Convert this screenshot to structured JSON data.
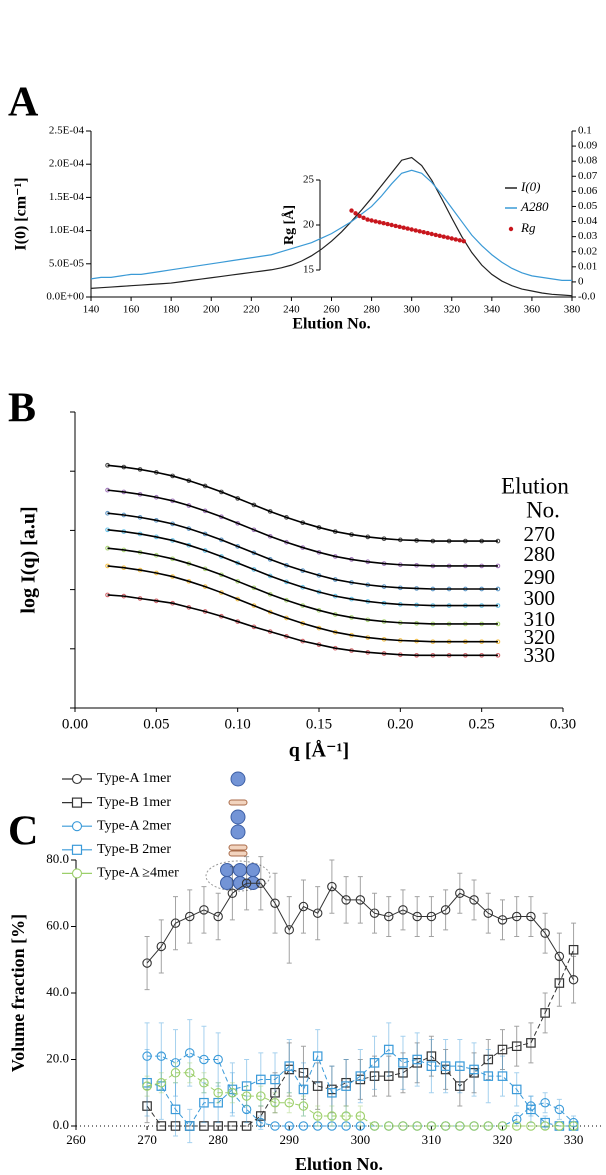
{
  "chart_data": [
    {
      "type": "line",
      "panel": "A",
      "xlabel": "Elution No.",
      "ylabel": "I(0) [cm⁻¹]",
      "xlim": [
        140,
        380
      ],
      "xticks": [
        140,
        160,
        180,
        200,
        220,
        240,
        260,
        280,
        300,
        320,
        340,
        360,
        380
      ],
      "ylim": [
        0,
        0.00025
      ],
      "yticks": [
        {
          "value": 0,
          "label": "0.0E+00"
        },
        {
          "value": 5e-05,
          "label": "5.0E-05"
        },
        {
          "value": 0.0001,
          "label": "1.0E-04"
        },
        {
          "value": 0.00015,
          "label": "1.5E-04"
        },
        {
          "value": 0.0002,
          "label": "2.0E-04"
        },
        {
          "value": 0.00025,
          "label": "2.5E-04"
        }
      ],
      "y2lim": [
        -0.01,
        0.1
      ],
      "y2ticks": [
        {
          "value": -0.01,
          "label": "-0.0"
        },
        0,
        0.01,
        0.02,
        0.03,
        0.04,
        0.05,
        0.06,
        0.07,
        0.08,
        0.09,
        0.1
      ],
      "inset_axis": {
        "label": "Rg [Å]",
        "ylim": [
          15,
          25
        ],
        "yticks": [
          15,
          20,
          25
        ]
      },
      "legend": "center-right",
      "x": [
        140,
        145,
        150,
        155,
        160,
        165,
        170,
        175,
        180,
        185,
        190,
        195,
        200,
        205,
        210,
        215,
        220,
        225,
        230,
        235,
        240,
        245,
        250,
        255,
        260,
        265,
        270,
        275,
        280,
        285,
        290,
        295,
        300,
        305,
        310,
        315,
        320,
        325,
        330,
        335,
        340,
        345,
        350,
        355,
        360,
        365,
        370,
        375,
        380
      ],
      "series": [
        {
          "name": "I(0)",
          "color": "#222222",
          "values": [
            1.3e-05,
            1.4e-05,
            1.5e-05,
            1.6e-05,
            1.7e-05,
            1.8e-05,
            1.9e-05,
            2e-05,
            2.1e-05,
            2.3e-05,
            2.5e-05,
            2.7e-05,
            2.9e-05,
            3.1e-05,
            3.3e-05,
            3.5e-05,
            3.7e-05,
            3.9e-05,
            4.1e-05,
            4.4e-05,
            4.8e-05,
            5.4e-05,
            6.2e-05,
            7.2e-05,
            8.4e-05,
            9.8e-05,
            0.000114,
            0.000131,
            0.000149,
            0.000168,
            0.000187,
            0.000206,
            0.00021,
            0.000198,
            0.000176,
            0.000148,
            0.000119,
            9.1e-05,
            6.7e-05,
            4.8e-05,
            3.4e-05,
            2.4e-05,
            1.7e-05,
            1.2e-05,
            9e-06,
            6e-06,
            4e-06,
            3e-06,
            2e-06
          ]
        },
        {
          "name": "A280",
          "color": "#3b9ad6",
          "axis": "y2",
          "values": [
            0.002,
            0.003,
            0.003,
            0.004,
            0.005,
            0.005,
            0.006,
            0.007,
            0.008,
            0.009,
            0.01,
            0.011,
            0.012,
            0.013,
            0.014,
            0.015,
            0.016,
            0.017,
            0.018,
            0.02,
            0.022,
            0.024,
            0.026,
            0.029,
            0.032,
            0.036,
            0.04,
            0.045,
            0.05,
            0.057,
            0.065,
            0.072,
            0.074,
            0.072,
            0.066,
            0.058,
            0.049,
            0.04,
            0.031,
            0.024,
            0.018,
            0.013,
            0.009,
            0.006,
            0.004,
            0.003,
            0.002,
            0.001,
            0.001
          ]
        },
        {
          "name": "Rg",
          "color": "#c8161d",
          "axis": "inset",
          "marker": "dot",
          "line": false,
          "x": [
            270,
            272,
            274,
            276,
            278,
            280,
            282,
            284,
            286,
            288,
            290,
            292,
            294,
            296,
            298,
            300,
            302,
            304,
            306,
            308,
            310,
            312,
            314,
            316,
            318,
            320,
            322,
            324,
            326
          ],
          "values": [
            21.6,
            21.3,
            21.0,
            20.8,
            20.6,
            20.5,
            20.4,
            20.3,
            20.2,
            20.1,
            20.0,
            19.9,
            19.8,
            19.7,
            19.6,
            19.5,
            19.4,
            19.3,
            19.2,
            19.1,
            19.0,
            18.9,
            18.8,
            18.7,
            18.6,
            18.5,
            18.4,
            18.3,
            18.2
          ]
        }
      ]
    },
    {
      "type": "line",
      "panel": "B",
      "xlabel": "q [Å⁻¹]",
      "ylabel": "log I(q) [a.u]",
      "xlim": [
        0,
        0.3
      ],
      "xticks": [
        {
          "value": 0,
          "label": "0.00"
        },
        {
          "value": 0.05,
          "label": "0.05"
        },
        {
          "value": 0.1,
          "label": "0.10"
        },
        {
          "value": 0.15,
          "label": "0.15"
        },
        {
          "value": 0.2,
          "label": "0.20"
        },
        {
          "value": 0.25,
          "label": "0.25"
        },
        {
          "value": 0.3,
          "label": "0.30"
        }
      ],
      "ylim": [
        0,
        5
      ],
      "yticks": [
        0,
        1,
        2,
        3,
        4,
        5
      ],
      "ytick_labels": false,
      "legend": "right",
      "legend_title": [
        "Elution",
        "No."
      ],
      "x": [
        0.02,
        0.03,
        0.04,
        0.05,
        0.06,
        0.07,
        0.08,
        0.09,
        0.1,
        0.11,
        0.12,
        0.13,
        0.14,
        0.15,
        0.16,
        0.17,
        0.18,
        0.19,
        0.2,
        0.21,
        0.22,
        0.23,
        0.24,
        0.25,
        0.26
      ],
      "series": [
        {
          "name": "270",
          "color": "#000000",
          "line_color": "#000000",
          "marker": "circle",
          "values": [
            4.1,
            4.07,
            4.03,
            3.98,
            3.92,
            3.84,
            3.75,
            3.65,
            3.54,
            3.43,
            3.32,
            3.22,
            3.13,
            3.05,
            2.98,
            2.93,
            2.89,
            2.86,
            2.84,
            2.83,
            2.82,
            2.82,
            2.82,
            2.82,
            2.82
          ]
        },
        {
          "name": "280",
          "color": "#7b3fa0",
          "line_color": "#000000",
          "marker": "circle",
          "values": [
            3.68,
            3.65,
            3.61,
            3.56,
            3.5,
            3.42,
            3.33,
            3.23,
            3.12,
            3.01,
            2.9,
            2.8,
            2.71,
            2.63,
            2.56,
            2.51,
            2.47,
            2.44,
            2.42,
            2.41,
            2.4,
            2.4,
            2.4,
            2.4,
            2.4
          ]
        },
        {
          "name": "290",
          "color": "#1f6fb0",
          "line_color": "#000000",
          "marker": "circle",
          "values": [
            3.29,
            3.26,
            3.22,
            3.17,
            3.11,
            3.03,
            2.94,
            2.84,
            2.73,
            2.62,
            2.51,
            2.41,
            2.32,
            2.24,
            2.17,
            2.12,
            2.08,
            2.05,
            2.03,
            2.02,
            2.01,
            2.01,
            2.01,
            2.01,
            2.01
          ]
        },
        {
          "name": "300",
          "color": "#29a9e0",
          "line_color": "#000000",
          "marker": "circle",
          "values": [
            3.01,
            2.98,
            2.94,
            2.89,
            2.83,
            2.75,
            2.66,
            2.56,
            2.45,
            2.34,
            2.23,
            2.13,
            2.04,
            1.96,
            1.89,
            1.84,
            1.8,
            1.77,
            1.75,
            1.74,
            1.73,
            1.73,
            1.73,
            1.73,
            1.73
          ]
        },
        {
          "name": "310",
          "color": "#8cc63f",
          "line_color": "#000000",
          "marker": "circle",
          "values": [
            2.7,
            2.67,
            2.63,
            2.58,
            2.52,
            2.44,
            2.35,
            2.25,
            2.14,
            2.03,
            1.92,
            1.82,
            1.73,
            1.65,
            1.58,
            1.53,
            1.49,
            1.46,
            1.44,
            1.43,
            1.42,
            1.42,
            1.42,
            1.42,
            1.42
          ]
        },
        {
          "name": "320",
          "color": "#f2a900",
          "line_color": "#000000",
          "marker": "circle",
          "values": [
            2.4,
            2.37,
            2.33,
            2.28,
            2.22,
            2.14,
            2.05,
            1.95,
            1.84,
            1.73,
            1.62,
            1.52,
            1.43,
            1.35,
            1.28,
            1.23,
            1.19,
            1.16,
            1.14,
            1.13,
            1.12,
            1.12,
            1.12,
            1.12,
            1.12
          ]
        },
        {
          "name": "330",
          "color": "#c1272d",
          "line_color": "#000000",
          "marker": "circle",
          "values": [
            1.91,
            1.89,
            1.85,
            1.81,
            1.77,
            1.7,
            1.63,
            1.55,
            1.46,
            1.37,
            1.29,
            1.21,
            1.13,
            1.07,
            1.01,
            0.97,
            0.94,
            0.92,
            0.9,
            0.89,
            0.89,
            0.89,
            0.89,
            0.89,
            0.89
          ]
        }
      ]
    },
    {
      "type": "line",
      "panel": "C",
      "xlabel": "Elution No.",
      "ylabel": "Volume fraction [%]",
      "xlim": [
        260,
        334
      ],
      "xticks": [
        260,
        270,
        280,
        290,
        300,
        310,
        320,
        330
      ],
      "ylim": [
        0,
        80
      ],
      "yticks": [
        {
          "value": 0,
          "label": "0.0"
        },
        {
          "value": 20,
          "label": "20.0"
        },
        {
          "value": 40,
          "label": "40.0"
        },
        {
          "value": 60,
          "label": "60.0"
        },
        {
          "value": 80,
          "label": "80.0"
        }
      ],
      "legend": "top-left",
      "x": [
        270,
        272,
        274,
        276,
        278,
        280,
        282,
        284,
        286,
        288,
        290,
        292,
        294,
        296,
        298,
        300,
        302,
        304,
        306,
        308,
        310,
        312,
        314,
        316,
        318,
        320,
        322,
        324,
        326,
        328,
        330
      ],
      "series": [
        {
          "name": "Type-A 1mer",
          "color": "#333333",
          "marker": "circle",
          "values": [
            49,
            54,
            61,
            63,
            65,
            63,
            70,
            73,
            73,
            67,
            59,
            66,
            64,
            72,
            68,
            68,
            64,
            63,
            65,
            63,
            63,
            65,
            70,
            68,
            64,
            62,
            63,
            63,
            58,
            51,
            44
          ],
          "errors": [
            8,
            8,
            8,
            8,
            7,
            7,
            8,
            8,
            8,
            9,
            10,
            8,
            8,
            8,
            7,
            7,
            6,
            6,
            6,
            6,
            6,
            6,
            6,
            6,
            6,
            6,
            6,
            6,
            6,
            7,
            7
          ]
        },
        {
          "name": "Type-B 1mer",
          "color": "#333333",
          "marker": "square",
          "dash": true,
          "values": [
            6,
            0,
            0,
            0,
            0,
            0,
            0,
            0,
            3,
            10,
            17,
            16,
            12,
            11,
            13,
            14,
            15,
            15,
            16,
            19,
            21,
            17,
            12,
            16,
            20,
            23,
            24,
            25,
            34,
            43,
            53
          ],
          "errors": [
            5,
            0,
            0,
            0,
            0,
            0,
            0,
            0,
            3,
            6,
            8,
            8,
            7,
            7,
            7,
            6,
            6,
            6,
            6,
            6,
            6,
            6,
            6,
            6,
            6,
            6,
            6,
            6,
            6,
            7,
            8
          ]
        },
        {
          "name": "Type-A 2mer",
          "color": "#3a9ad9",
          "marker": "circle",
          "dash": true,
          "values": [
            21,
            21,
            19,
            22,
            20,
            20,
            10,
            5,
            1,
            0,
            0,
            0,
            0,
            0,
            0,
            0,
            0,
            0,
            0,
            0,
            0,
            0,
            0,
            0,
            0,
            0,
            2,
            6,
            7,
            5,
            1
          ],
          "errors": [
            10,
            10,
            10,
            10,
            10,
            8,
            6,
            4,
            2,
            0,
            0,
            0,
            0,
            0,
            0,
            0,
            0,
            0,
            0,
            0,
            0,
            0,
            0,
            0,
            0,
            0,
            2,
            3,
            3,
            3,
            2
          ]
        },
        {
          "name": "Type-B 2mer",
          "color": "#3a9ad9",
          "marker": "square",
          "dash": true,
          "values": [
            13,
            12,
            5,
            0,
            7,
            7,
            11,
            12,
            14,
            14,
            18,
            11,
            21,
            10,
            12,
            15,
            19,
            23,
            19,
            20,
            18,
            18,
            18,
            17,
            15,
            15,
            11,
            5,
            1,
            0,
            0
          ],
          "errors": [
            10,
            10,
            8,
            5,
            6,
            6,
            8,
            8,
            8,
            8,
            8,
            8,
            8,
            8,
            8,
            8,
            8,
            8,
            8,
            8,
            8,
            8,
            8,
            8,
            8,
            6,
            5,
            4,
            2,
            0,
            0
          ]
        },
        {
          "name": "Type-A ≥4mer",
          "color": "#9ccf6a",
          "marker": "circle",
          "dash": true,
          "values": [
            12,
            13,
            16,
            16,
            13,
            10,
            10,
            9,
            9,
            7,
            7,
            6,
            3,
            3,
            3,
            3,
            0,
            0,
            0,
            0,
            0,
            0,
            0,
            0,
            0,
            0,
            0,
            0,
            0,
            0,
            0
          ],
          "errors": [
            3,
            3,
            3,
            3,
            3,
            3,
            3,
            3,
            3,
            3,
            3,
            3,
            3,
            3,
            3,
            3,
            0,
            0,
            0,
            0,
            0,
            0,
            0,
            0,
            0,
            0,
            0,
            0,
            0,
            0,
            0
          ]
        }
      ]
    }
  ]
}
